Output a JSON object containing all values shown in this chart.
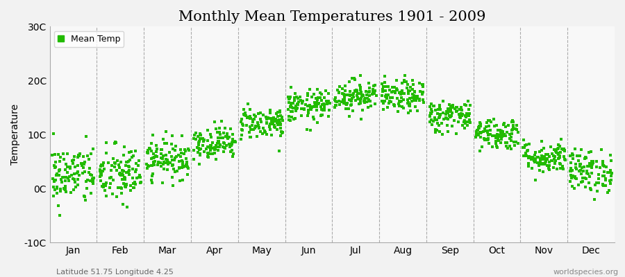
{
  "title": "Monthly Mean Temperatures 1901 - 2009",
  "ylabel": "Temperature",
  "ylim": [
    -10,
    30
  ],
  "yticks": [
    -10,
    0,
    10,
    20,
    30
  ],
  "ytick_labels": [
    "-10C",
    "0C",
    "10C",
    "20C",
    "30C"
  ],
  "months": [
    "Jan",
    "Feb",
    "Mar",
    "Apr",
    "May",
    "Jun",
    "Jul",
    "Aug",
    "Sep",
    "Oct",
    "Nov",
    "Dec"
  ],
  "month_means": [
    2.5,
    2.5,
    5.5,
    8.5,
    12.2,
    15.2,
    17.2,
    17.0,
    13.5,
    10.2,
    5.8,
    3.2
  ],
  "month_stds": [
    2.8,
    2.8,
    1.8,
    1.5,
    1.5,
    1.5,
    1.5,
    1.5,
    1.5,
    1.5,
    1.5,
    2.0
  ],
  "n_years": 109,
  "scatter_color": "#22bb00",
  "scatter_size": 6,
  "background_color": "#f2f2f2",
  "plot_bg_color": "#f2f2f2",
  "legend_label": "Mean Temp",
  "footer_left": "Latitude 51.75 Longitude 4.25",
  "footer_right": "worldspecies.org",
  "title_fontsize": 15,
  "axis_label_fontsize": 10,
  "tick_fontsize": 10,
  "footer_fontsize": 8,
  "legend_fontsize": 9,
  "dashed_line_color": "#999999",
  "plot_bg": "#f8f8f8"
}
